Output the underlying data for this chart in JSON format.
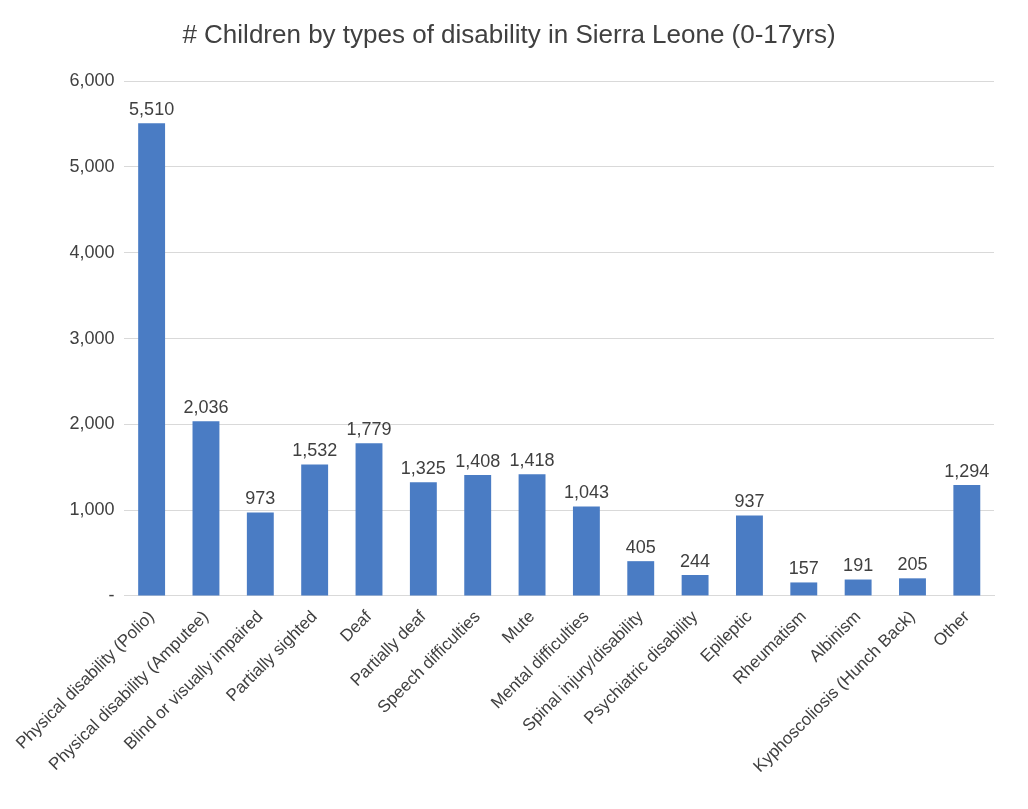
{
  "chart_data": {
    "type": "bar",
    "title": "# Children by types of disability in Sierra Leone (0-17yrs)",
    "categories": [
      "Physical disability (Polio)",
      "Physical disability (Amputee)",
      "Blind or visually impaired",
      "Partially sighted",
      "Deaf",
      "Partially deaf",
      "Speech difficulties",
      "Mute",
      "Mental difficulties",
      "Spinal injury/disability",
      "Psychiatric disability",
      "Epileptic",
      "Rheumatism",
      "Albinism",
      "Kyphoscoliosis (Hunch Back)",
      "Other"
    ],
    "values": [
      5510,
      2036,
      973,
      1532,
      1779,
      1325,
      1408,
      1418,
      1043,
      405,
      244,
      937,
      157,
      191,
      205,
      1294
    ],
    "color": "#4a7cc4",
    "ylim": [
      0,
      6000
    ],
    "yticks": [
      {
        "value": 0,
        "label": "-"
      },
      {
        "value": 1000,
        "label": "1,000"
      },
      {
        "value": 2000,
        "label": "2,000"
      },
      {
        "value": 3000,
        "label": "3,000"
      },
      {
        "value": 4000,
        "label": "4,000"
      },
      {
        "value": 5000,
        "label": "5,000"
      },
      {
        "value": 6000,
        "label": "6,000"
      }
    ],
    "value_labels": [
      "5,510",
      "2,036",
      "973",
      "1,532",
      "1,779",
      "1,325",
      "1,408",
      "1,418",
      "1,043",
      "405",
      "244",
      "937",
      "157",
      "191",
      "205",
      "1,294"
    ],
    "grid": "y",
    "legend": false
  }
}
